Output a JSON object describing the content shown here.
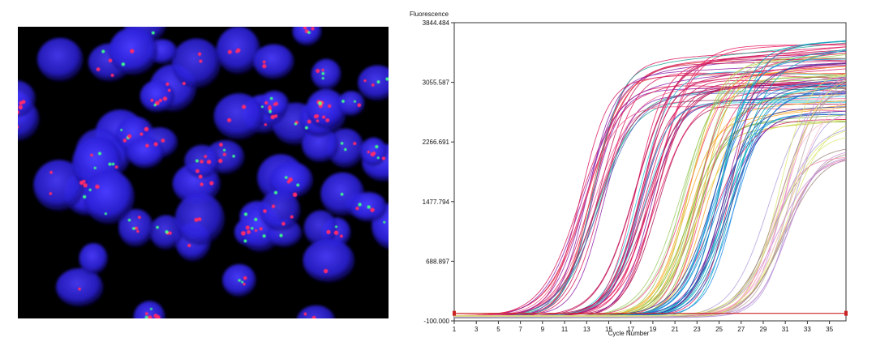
{
  "micrograph": {
    "description_icon": "fluorescence-microscopy-image",
    "colors": {
      "background": "#000000",
      "nucleus": "#2a1fd6",
      "red_signal": "#ff2a6a",
      "green_signal": "#3dff8a"
    }
  },
  "chart_data": {
    "type": "line",
    "ylabel": "Fluorescence",
    "xlabel": "Cycle Number",
    "x_ticks": [
      1,
      3,
      5,
      7,
      9,
      11,
      13,
      15,
      17,
      19,
      21,
      23,
      25,
      27,
      29,
      31,
      33,
      35
    ],
    "y_tick_labels": [
      "-100.000",
      "688.897",
      "1477.794",
      "2266.691",
      "3055.587",
      "3844.484"
    ],
    "y_ticks": [
      -100.0,
      688.897,
      1477.794,
      2266.691,
      3055.587,
      3844.484
    ],
    "xlim": [
      1,
      36.5
    ],
    "ylim": [
      -100.0,
      3844.484
    ],
    "threshold": 0,
    "grid": false,
    "colors": {
      "threshold": "#cc2222",
      "axis": "#333333"
    },
    "curve_groups": [
      {
        "midpoint_cycle": 13.5,
        "plateau_range": [
          2700,
          3450
        ],
        "count": 22,
        "palette": [
          "#d81b60",
          "#c2185b",
          "#e53935",
          "#8e24aa",
          "#f06292",
          "#26a69a",
          "#5c6bc0"
        ]
      },
      {
        "midpoint_cycle": 18.5,
        "plateau_range": [
          2800,
          3600
        ],
        "count": 22,
        "palette": [
          "#c2185b",
          "#d81b60",
          "#ad1457",
          "#7b1fa2",
          "#e91e63",
          "#26c6da"
        ]
      },
      {
        "midpoint_cycle": 22.5,
        "plateau_range": [
          2500,
          3500
        ],
        "count": 22,
        "palette": [
          "#c0ca33",
          "#9ccc65",
          "#f9a825",
          "#aed581",
          "#d4e157",
          "#ec407a",
          "#7cb342"
        ]
      },
      {
        "midpoint_cycle": 25.5,
        "plateau_range": [
          2600,
          3700
        ],
        "count": 22,
        "palette": [
          "#1565c0",
          "#283593",
          "#00acc1",
          "#3949ab",
          "#d81b60",
          "#1e88e5",
          "#8e24aa"
        ]
      },
      {
        "midpoint_cycle": 30.5,
        "plateau_range": [
          2100,
          3300
        ],
        "count": 22,
        "palette": [
          "#f48fb1",
          "#bcaaa4",
          "#ce93d8",
          "#dce775",
          "#f8bbd0",
          "#b39ddb",
          "#a1887f"
        ]
      }
    ]
  }
}
